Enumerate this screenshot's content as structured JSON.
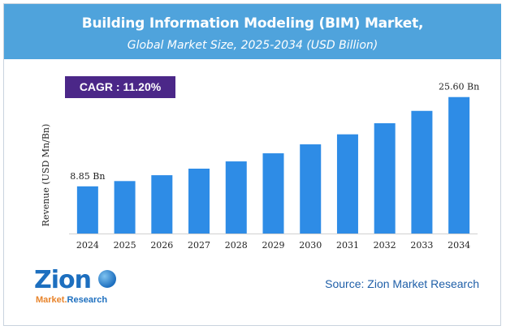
{
  "header": {
    "title": "Building Information Modeling (BIM) Market,",
    "subtitle": "Global Market Size, 2025-2034 (USD Billion)"
  },
  "cagr_badge": "CAGR :  11.20%",
  "chart_data": {
    "type": "bar",
    "title": "Building Information Modeling (BIM) Market, Global Market Size, 2025-2034 (USD Billion)",
    "categories": [
      "2024",
      "2025",
      "2026",
      "2027",
      "2028",
      "2029",
      "2030",
      "2031",
      "2032",
      "2033",
      "2034"
    ],
    "values": [
      8.85,
      9.84,
      10.94,
      12.17,
      13.53,
      15.05,
      16.73,
      18.61,
      20.69,
      23.01,
      25.6
    ],
    "data_labels": {
      "first": "8.85 Bn",
      "last": "25.60 Bn"
    },
    "ylabel": "Revenue (USD Mn/Bn)",
    "xlabel": "",
    "ylim": [
      0,
      30
    ],
    "bar_color": "#2e8ce6"
  },
  "logo": {
    "name": "Zion",
    "tagline_a": "Market.",
    "tagline_b": "Research"
  },
  "source": "Source: Zion Market Research"
}
